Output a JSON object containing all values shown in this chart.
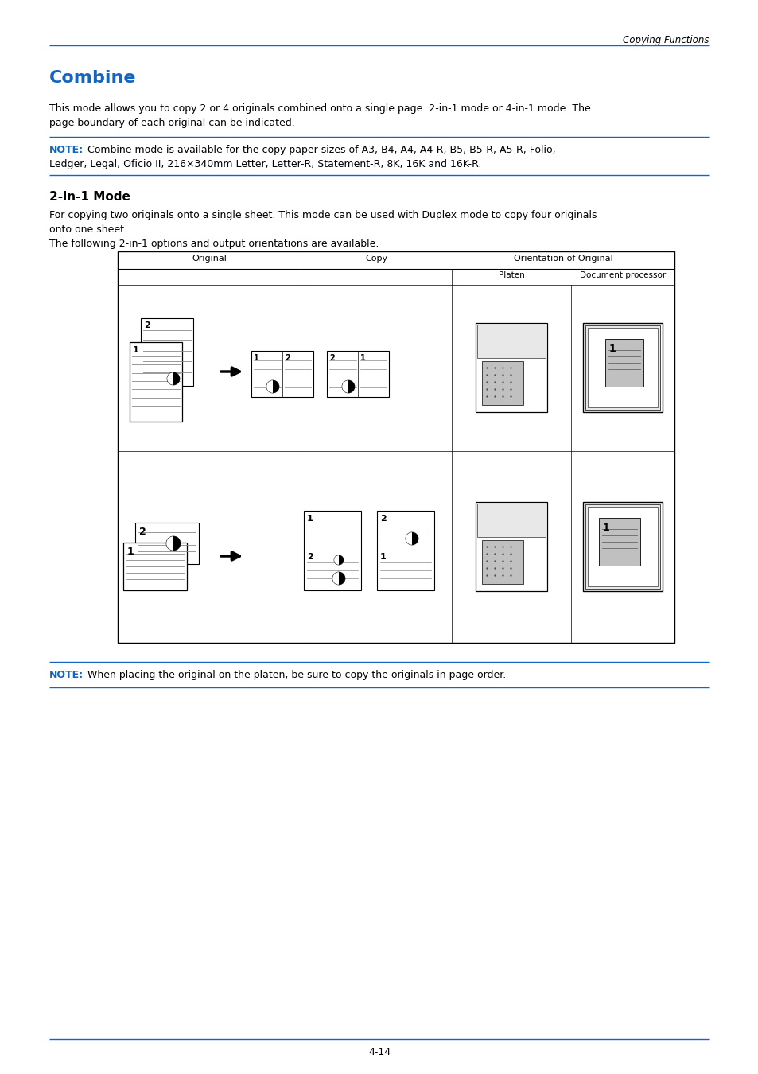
{
  "page_header": "Copying Functions",
  "title": "Combine",
  "title_color": "#1565c0",
  "body1_l1": "This mode allows you to copy 2 or 4 originals combined onto a single page. 2-in-1 mode or 4-in-1 mode. The",
  "body1_l2": "page boundary of each original can be indicated.",
  "note1_label": "NOTE:",
  "note1_body": " Combine mode is available for the copy paper sizes of A3, B4, A4, A4-R, B5, B5-R, A5-R, Folio,",
  "note1_body2": "Ledger, Legal, Oficio II, 216×340mm Letter, Letter-R, Statement-R, 8K, 16K and 16K-R.",
  "section_title": "2-in-1 Mode",
  "body2_l1": "For copying two originals onto a single sheet. This mode can be used with Duplex mode to copy four originals",
  "body2_l2": "onto one sheet.",
  "body3": "The following 2-in-1 options and output orientations are available.",
  "hdr_original": "Original",
  "hdr_copy": "Copy",
  "hdr_orientation": "Orientation of Original",
  "hdr_platen": "Platen",
  "hdr_docproc": "Document processor",
  "note2_label": "NOTE:",
  "note2_body": " When placing the original on the platen, be sure to copy the originals in page order.",
  "page_number": "4-14",
  "blue": "#1565c0",
  "black": "#000000",
  "gray_line": "#aaaaaa",
  "mid_gray": "#c0c0c0",
  "dark_gray": "#888888",
  "light_gray": "#e8e8e8"
}
